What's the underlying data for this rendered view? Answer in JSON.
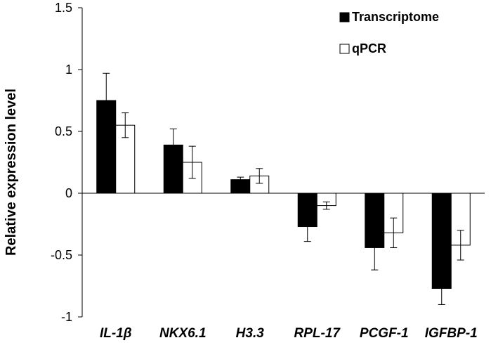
{
  "chart_data": {
    "type": "bar",
    "categories": [
      "IL-1β",
      "NKX6.1",
      "H3.3",
      "RPL-17",
      "PCGF-1",
      "IGFBP-1"
    ],
    "series": [
      {
        "name": "Transcriptome",
        "values": [
          0.75,
          0.39,
          0.11,
          -0.27,
          -0.44,
          -0.77
        ],
        "errors": [
          0.22,
          0.13,
          0.02,
          0.12,
          0.18,
          0.13
        ],
        "color": "#000000"
      },
      {
        "name": "qPCR",
        "values": [
          0.55,
          0.25,
          0.14,
          -0.1,
          -0.32,
          -0.42
        ],
        "errors": [
          0.1,
          0.13,
          0.06,
          0.03,
          0.12,
          0.12
        ],
        "color": "#ffffff"
      }
    ],
    "ylabel": "Relative expression level",
    "xlabel": "",
    "ylim": [
      -1,
      1.5
    ],
    "yticks": [
      "1.5",
      "1",
      "0.5",
      "0",
      "-0.5",
      "-1"
    ],
    "ytick_values": [
      1.5,
      1,
      0.5,
      0,
      -0.5,
      -1
    ],
    "grid": false,
    "legend_position": "top-right"
  }
}
